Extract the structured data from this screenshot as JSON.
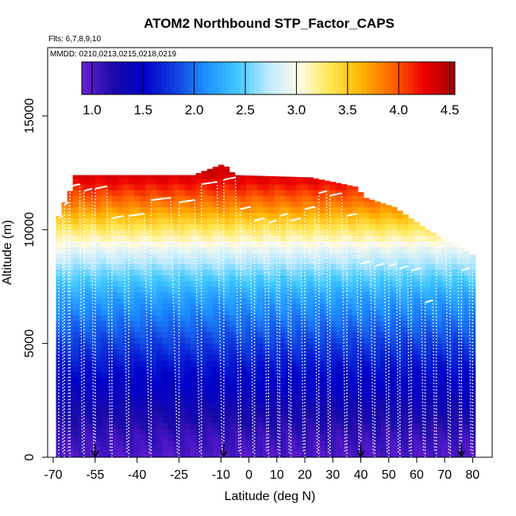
{
  "chart_data": {
    "type": "heatmap",
    "title": "ATOM2 Northbound STP_Factor_CAPS",
    "subtitle_flights": "Flts: 6,7,8,9,10",
    "subtitle_dates": "MMDD: 0210,0213,0215,0218,0219",
    "xlabel": "Latitude (deg N)",
    "ylabel": "Altitude (m)",
    "xlim": [
      -72,
      87
    ],
    "ylim": [
      0,
      18000
    ],
    "x_ticks": [
      -70,
      -55,
      -40,
      -25,
      -10,
      0,
      10,
      20,
      30,
      40,
      50,
      60,
      70,
      80
    ],
    "x_tick_labels": [
      "-70",
      "-55",
      "-40",
      "-25",
      "-10",
      "0",
      "10",
      "20",
      "30",
      "40",
      "50",
      "60",
      "70",
      "80"
    ],
    "y_ticks": [
      0,
      5000,
      10000,
      15000
    ],
    "y_tick_labels": [
      "0",
      "5000",
      "10000",
      "15000"
    ],
    "colorbar": {
      "min": 0.9,
      "max": 4.55,
      "ticks": [
        1.0,
        1.5,
        2.0,
        2.5,
        3.0,
        3.5,
        4.0,
        4.5
      ],
      "tick_labels": [
        "1.0",
        "1.5",
        "2.0",
        "2.5",
        "3.0",
        "3.5",
        "4.0",
        "4.5"
      ],
      "colors": [
        "#6a1fd6",
        "#1a0aa8",
        "#0000c8",
        "#1040e0",
        "#1e90ff",
        "#40c8ff",
        "#bfeaff",
        "#fffbe6",
        "#ffe650",
        "#ffb400",
        "#ff6400",
        "#ef0000",
        "#a80000"
      ]
    },
    "value_by_altitude": [
      {
        "altitude": 0,
        "value": 1.0
      },
      {
        "altitude": 1000,
        "value": 1.1
      },
      {
        "altitude": 2000,
        "value": 1.25
      },
      {
        "altitude": 3000,
        "value": 1.45
      },
      {
        "altitude": 4000,
        "value": 1.6
      },
      {
        "altitude": 5000,
        "value": 1.8
      },
      {
        "altitude": 6000,
        "value": 2.0
      },
      {
        "altitude": 7000,
        "value": 2.2
      },
      {
        "altitude": 8000,
        "value": 2.5
      },
      {
        "altitude": 9000,
        "value": 2.85
      },
      {
        "altitude": 10000,
        "value": 3.3
      },
      {
        "altitude": 11000,
        "value": 3.8
      },
      {
        "altitude": 12000,
        "value": 4.2
      },
      {
        "altitude": 12500,
        "value": 4.4
      }
    ],
    "column_top_altitude": [
      {
        "lat": -68,
        "top": 10600
      },
      {
        "lat": -66,
        "top": 11200
      },
      {
        "lat": -64,
        "top": 11700
      },
      {
        "lat": -62,
        "top": 12400
      },
      {
        "lat": -20,
        "top": 12400
      },
      {
        "lat": -9,
        "top": 12900
      },
      {
        "lat": -5,
        "top": 12400
      },
      {
        "lat": 22,
        "top": 12300
      },
      {
        "lat": 38,
        "top": 11900
      },
      {
        "lat": 42,
        "top": 11400
      },
      {
        "lat": 52,
        "top": 11000
      },
      {
        "lat": 58,
        "top": 10500
      },
      {
        "lat": 64,
        "top": 10000
      },
      {
        "lat": 70,
        "top": 9600
      },
      {
        "lat": 76,
        "top": 9200
      },
      {
        "lat": 80,
        "top": 8900
      }
    ],
    "flight_profiles_lat": [
      -68,
      -66,
      -64,
      -59,
      -55,
      -49,
      -43,
      -35,
      -25,
      -17,
      -9,
      -3,
      2,
      7,
      11,
      15,
      20,
      25,
      29,
      35,
      40,
      45,
      50,
      54,
      58,
      63,
      67,
      72,
      76,
      80
    ],
    "profile_peak_altitude": [
      10500,
      11100,
      11900,
      11700,
      11800,
      10500,
      10600,
      11300,
      11200,
      12000,
      12200,
      10900,
      10400,
      10300,
      10600,
      10400,
      10900,
      11600,
      11500,
      10600,
      8500,
      8400,
      8400,
      8300,
      8200,
      6800,
      9200,
      9300,
      8200,
      8400
    ],
    "ground_arrows_lat": [
      -55,
      -9,
      40,
      76
    ]
  }
}
